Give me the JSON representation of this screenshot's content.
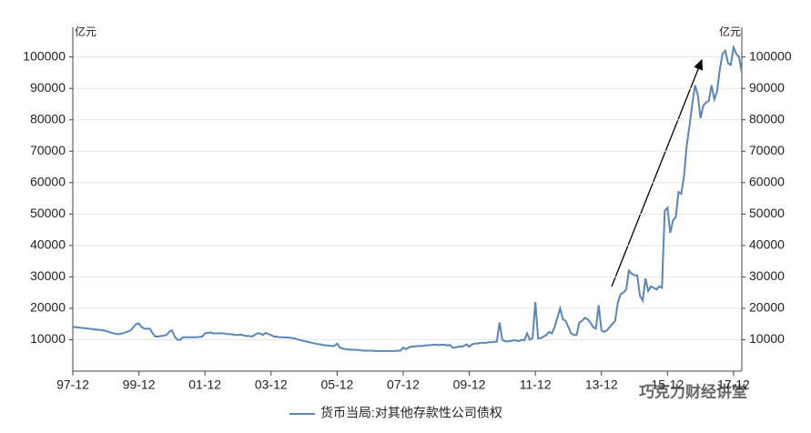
{
  "chart_data": {
    "type": "line",
    "y_unit": "亿元",
    "y2_unit": "亿元",
    "watermark": "巧克力财经讲堂",
    "categories": [
      "97-12",
      null,
      null,
      null,
      null,
      null,
      null,
      null,
      null,
      null,
      null,
      null,
      null,
      null,
      null,
      null,
      null,
      null,
      null,
      null,
      null,
      null,
      null,
      null,
      "99-12",
      null,
      null,
      null,
      null,
      null,
      null,
      null,
      null,
      null,
      null,
      null,
      null,
      null,
      null,
      null,
      null,
      null,
      null,
      null,
      null,
      null,
      null,
      null,
      "01-12",
      null,
      null,
      null,
      null,
      null,
      null,
      null,
      null,
      null,
      null,
      null,
      null,
      null,
      null,
      null,
      null,
      null,
      null,
      null,
      null,
      null,
      null,
      null,
      "03-12",
      null,
      null,
      null,
      null,
      null,
      null,
      null,
      null,
      null,
      null,
      null,
      null,
      null,
      null,
      null,
      null,
      null,
      null,
      null,
      null,
      null,
      null,
      null,
      "05-12",
      null,
      null,
      null,
      null,
      null,
      null,
      null,
      null,
      null,
      null,
      null,
      null,
      null,
      null,
      null,
      null,
      null,
      null,
      null,
      null,
      null,
      null,
      null,
      "07-12",
      null,
      null,
      null,
      null,
      null,
      null,
      null,
      null,
      null,
      null,
      null,
      null,
      null,
      null,
      null,
      null,
      null,
      null,
      null,
      null,
      null,
      null,
      null,
      "09-12",
      null,
      null,
      null,
      null,
      null,
      null,
      null,
      null,
      null,
      null,
      null,
      null,
      null,
      null,
      null,
      null,
      null,
      null,
      null,
      null,
      null,
      null,
      null,
      "11-12",
      null,
      null,
      null,
      null,
      null,
      null,
      null,
      null,
      null,
      null,
      null,
      null,
      null,
      null,
      null,
      null,
      null,
      null,
      null,
      null,
      null,
      null,
      null,
      "13-12",
      null,
      null,
      null,
      null,
      null,
      null,
      null,
      null,
      null,
      null,
      null,
      null,
      null,
      null,
      null,
      null,
      null,
      null,
      null,
      null,
      null,
      null,
      null,
      "15-12",
      null,
      null,
      null,
      null,
      null,
      null,
      null,
      null,
      null,
      null,
      null,
      null,
      null,
      null,
      null,
      null,
      null,
      null,
      null,
      null,
      null,
      null,
      null,
      "17-12",
      null,
      null,
      null
    ],
    "series": [
      {
        "name": "货币当局:对其他存款性公司债权",
        "color": "#5b86b8",
        "values": [
          14000,
          14000,
          13900,
          13800,
          13700,
          13600,
          13500,
          13400,
          13300,
          13200,
          13100,
          13000,
          12800,
          12500,
          12200,
          12000,
          11800,
          11800,
          12000,
          12300,
          12600,
          13000,
          14000,
          15000,
          15200,
          14000,
          13500,
          13500,
          13500,
          12000,
          11000,
          11000,
          11200,
          11300,
          11500,
          12500,
          13000,
          11000,
          10000,
          10000,
          10800,
          10800,
          10800,
          10800,
          10800,
          10800,
          10900,
          11000,
          12000,
          12200,
          12300,
          12000,
          12000,
          12100,
          12000,
          12000,
          11800,
          11800,
          11700,
          11500,
          11500,
          11600,
          11400,
          11200,
          11200,
          11000,
          11500,
          12000,
          12000,
          11500,
          12200,
          11800,
          11500,
          11000,
          11000,
          10800,
          10800,
          10700,
          10700,
          10600,
          10500,
          10300,
          10000,
          9800,
          9600,
          9400,
          9200,
          9000,
          8800,
          8600,
          8500,
          8300,
          8200,
          8100,
          8000,
          8000,
          8800,
          7500,
          7200,
          7000,
          6900,
          6800,
          6800,
          6800,
          6700,
          6600,
          6500,
          6500,
          6500,
          6500,
          6400,
          6400,
          6400,
          6400,
          6400,
          6400,
          6400,
          6400,
          6500,
          6500,
          7500,
          7000,
          7500,
          7800,
          7800,
          8000,
          8000,
          8000,
          8200,
          8200,
          8300,
          8400,
          8400,
          8300,
          8400,
          8400,
          8200,
          8300,
          7500,
          7500,
          7800,
          7800,
          8000,
          8500,
          7800,
          8500,
          8800,
          8800,
          9000,
          9000,
          9000,
          9200,
          9200,
          9300,
          9400,
          15500,
          10000,
          9500,
          9500,
          9600,
          9800,
          9800,
          9500,
          10000,
          9800,
          12000,
          10000,
          10500,
          22000,
          10500,
          10500,
          11000,
          11500,
          12500,
          12000,
          14000,
          17000,
          20000,
          16500,
          16000,
          14000,
          12000,
          11500,
          11500,
          15500,
          16000,
          17000,
          16500,
          15500,
          14000,
          13500,
          21000,
          13000,
          12500,
          13000,
          14000,
          15000,
          16000,
          22000,
          24500,
          25000,
          26000,
          32000,
          31000,
          30500,
          30500,
          24000,
          22500,
          29500,
          25500,
          27000,
          26500,
          26000,
          27000,
          26500,
          51000,
          52000,
          44000,
          48000,
          49000,
          57000,
          56500,
          62000,
          72000,
          78000,
          85000,
          91000,
          88000,
          80500,
          84500,
          85500,
          86000,
          91000,
          86500,
          89000,
          96000,
          101000,
          102000,
          98000,
          97500,
          103000,
          101000,
          100000,
          95000
        ]
      }
    ],
    "ylim": [
      0,
      108000
    ],
    "yticks": [
      10000,
      20000,
      30000,
      40000,
      50000,
      60000,
      70000,
      80000,
      90000,
      100000
    ],
    "y2lim": [
      0,
      108000
    ],
    "y2ticks": [
      10000,
      20000,
      30000,
      40000,
      50000,
      60000,
      70000,
      80000,
      90000,
      100000
    ],
    "grid": true
  }
}
